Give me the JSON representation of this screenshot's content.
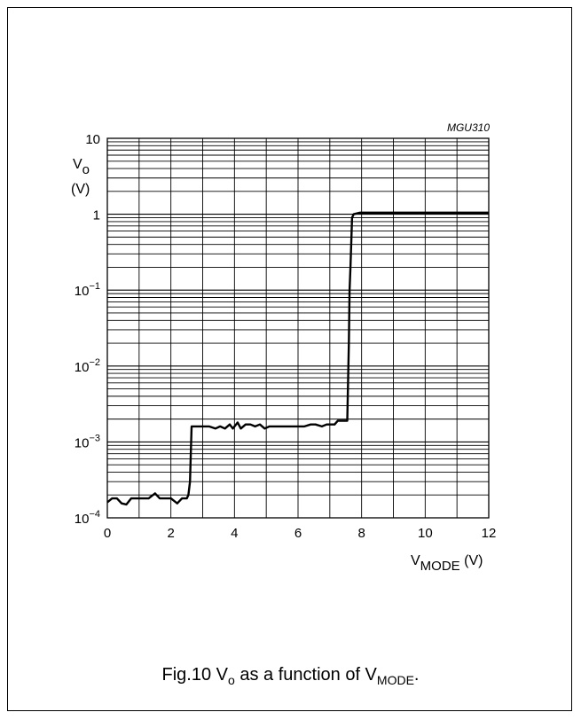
{
  "figure_id": "MGU310",
  "caption": {
    "prefix": "Fig.10  V",
    "sub1": "o",
    "mid": " as a function of V",
    "sub2": "MODE",
    "suffix": "."
  },
  "chart_data": {
    "type": "line",
    "title": "",
    "xlabel": {
      "main": "V",
      "sub": "MODE",
      "unit": " (V)"
    },
    "ylabel": {
      "main": "V",
      "sub": "o",
      "unit": "(V)"
    },
    "xlim": [
      0,
      12
    ],
    "ylim": [
      0.0001,
      10
    ],
    "yscale": "log",
    "grid": true,
    "x_ticks": [
      0,
      2,
      4,
      6,
      8,
      10,
      12
    ],
    "y_ticks": [
      {
        "value": 10,
        "base": "10",
        "exp": ""
      },
      {
        "value": 1,
        "base": "1",
        "exp": ""
      },
      {
        "value": 0.1,
        "base": "10",
        "exp": "−1"
      },
      {
        "value": 0.01,
        "base": "10",
        "exp": "−2"
      },
      {
        "value": 0.001,
        "base": "10",
        "exp": "−3"
      },
      {
        "value": 0.0001,
        "base": "10",
        "exp": "−4"
      }
    ],
    "series": [
      {
        "x": [
          0,
          0.15,
          0.3,
          0.45,
          0.6,
          0.75,
          1.0,
          1.3,
          1.5,
          1.65,
          1.8,
          2.0,
          2.2,
          2.35,
          2.5,
          2.55,
          2.6,
          2.65,
          2.75,
          3.0,
          3.2,
          3.4,
          3.55,
          3.7,
          3.85,
          3.95,
          4.1,
          4.2,
          4.35,
          4.5,
          4.65,
          4.8,
          4.95,
          5.1,
          5.3,
          5.5,
          5.8,
          6.0,
          6.2,
          6.4,
          6.55,
          6.75,
          6.9,
          7.05,
          7.15,
          7.25,
          7.35,
          7.45,
          7.55,
          7.6,
          7.62,
          7.65,
          7.7,
          7.75,
          7.95,
          8.5,
          10,
          12
        ],
        "y": [
          0.00016,
          0.00018,
          0.00018,
          0.000155,
          0.00015,
          0.00018,
          0.00018,
          0.00018,
          0.00021,
          0.00018,
          0.00018,
          0.00018,
          0.000155,
          0.00018,
          0.00018,
          0.0002,
          0.0003,
          0.0016,
          0.0016,
          0.0016,
          0.0016,
          0.0015,
          0.0016,
          0.0015,
          0.0017,
          0.0015,
          0.0018,
          0.0015,
          0.0017,
          0.0017,
          0.0016,
          0.0017,
          0.0015,
          0.0016,
          0.0016,
          0.0016,
          0.0016,
          0.0016,
          0.0016,
          0.0017,
          0.0017,
          0.0016,
          0.0017,
          0.0017,
          0.0017,
          0.0019,
          0.0019,
          0.0019,
          0.0019,
          0.02,
          0.1,
          0.2,
          0.9,
          1.0,
          1.05,
          1.05,
          1.05,
          1.05
        ]
      }
    ]
  }
}
